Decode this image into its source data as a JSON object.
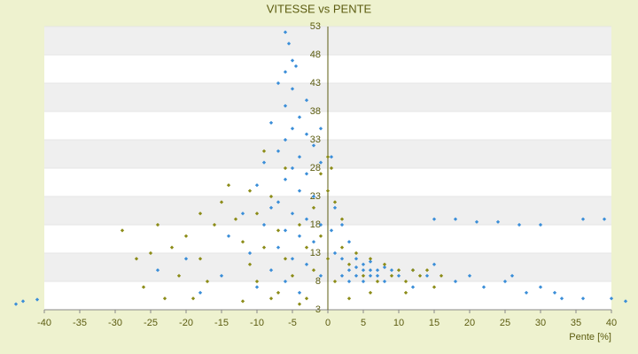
{
  "chart_data": {
    "type": "scatter",
    "title": "VITESSE vs PENTE",
    "xlabel": "Pente [%]",
    "xlim": [
      -40,
      40
    ],
    "ylim": [
      3,
      53
    ],
    "xticks": [
      -40,
      -35,
      -30,
      -25,
      -20,
      -15,
      -10,
      -5,
      0,
      5,
      10,
      15,
      20,
      25,
      30,
      35,
      40
    ],
    "yticks": [
      3,
      8,
      13,
      18,
      23,
      28,
      33,
      38,
      43,
      48,
      53
    ],
    "grid": true,
    "series": [
      {
        "color": "#3b8ed8",
        "x": [
          -6,
          -5.5,
          -5,
          -6,
          -4.5,
          -7,
          -5,
          -3,
          -6,
          -4,
          -8,
          -5,
          -3,
          -6,
          -2,
          -7,
          -4,
          -9,
          -5,
          -1,
          -3,
          -6,
          -10,
          -4,
          -2,
          -7,
          -8,
          -5,
          -12,
          -3,
          -1,
          -9,
          -6,
          -4,
          -14,
          -2,
          -7,
          -11,
          -5,
          -3,
          -8,
          -1,
          -6,
          -15,
          -10,
          -4,
          -20,
          -24,
          -18,
          -43,
          -41,
          -44,
          2,
          3,
          4,
          5,
          6,
          7,
          8,
          4,
          5,
          6,
          7,
          3,
          2,
          9,
          10,
          8,
          5,
          4,
          6,
          1,
          0.5,
          1,
          2,
          3,
          12,
          14,
          15,
          18,
          20,
          22,
          25,
          28,
          30,
          33,
          36,
          40,
          42,
          15,
          18,
          21,
          24,
          27,
          30,
          36,
          39,
          32,
          26,
          12,
          0.5,
          -1
        ],
        "y": [
          52,
          50,
          47,
          45,
          46,
          43,
          42,
          40,
          39,
          37,
          36,
          35,
          34,
          33,
          32,
          31,
          30,
          29,
          28,
          29,
          27,
          26,
          25,
          24,
          23,
          22,
          21,
          20,
          20,
          19,
          18,
          18,
          17,
          16,
          16,
          15,
          14,
          13,
          12,
          11,
          10,
          9,
          8,
          9,
          7,
          6,
          12,
          10,
          6,
          4.5,
          4.8,
          4,
          12,
          10,
          9,
          11,
          10,
          9,
          10.5,
          12,
          8,
          11.5,
          10,
          8,
          9,
          10,
          9,
          8,
          10,
          10.5,
          9,
          13,
          17,
          21,
          18,
          15,
          10,
          9,
          11,
          8,
          9,
          7,
          8,
          6,
          7,
          5,
          5,
          5,
          4.5,
          19,
          19,
          18.5,
          18.5,
          18,
          18,
          19,
          19,
          6,
          9,
          7,
          30,
          35
        ]
      },
      {
        "color": "#8c8c18",
        "x": [
          -27,
          -25,
          -29,
          -22,
          -20,
          -18,
          -16,
          -17,
          -15,
          -14,
          -13,
          -12,
          -11,
          -10,
          -10,
          -9,
          -8,
          -7,
          -7,
          -6,
          -5,
          -4,
          -3,
          -3,
          -2,
          -2,
          -1,
          -1,
          0,
          0,
          0,
          0.5,
          1,
          1,
          2,
          2,
          3,
          4,
          5,
          6,
          7,
          8,
          9,
          10,
          11,
          12,
          13,
          14,
          15,
          16,
          -23,
          -19,
          -26,
          -12,
          -8,
          -21,
          -24,
          -18,
          -11,
          -6,
          -9,
          -4,
          3,
          6,
          11
        ],
        "y": [
          12,
          13,
          17,
          14,
          16,
          12,
          18,
          8,
          22,
          25,
          19,
          15,
          11,
          20,
          8,
          14,
          23,
          17,
          6,
          12,
          9,
          18,
          14,
          5,
          21,
          10,
          27,
          16,
          30,
          24,
          12,
          28,
          22,
          8,
          19,
          14,
          11,
          13,
          9,
          12,
          8,
          11,
          9,
          10,
          8,
          10,
          9,
          10,
          7,
          9,
          5,
          5,
          7,
          4.5,
          5,
          9,
          18,
          20,
          24,
          28,
          31,
          4,
          5,
          6,
          6
        ]
      }
    ]
  }
}
